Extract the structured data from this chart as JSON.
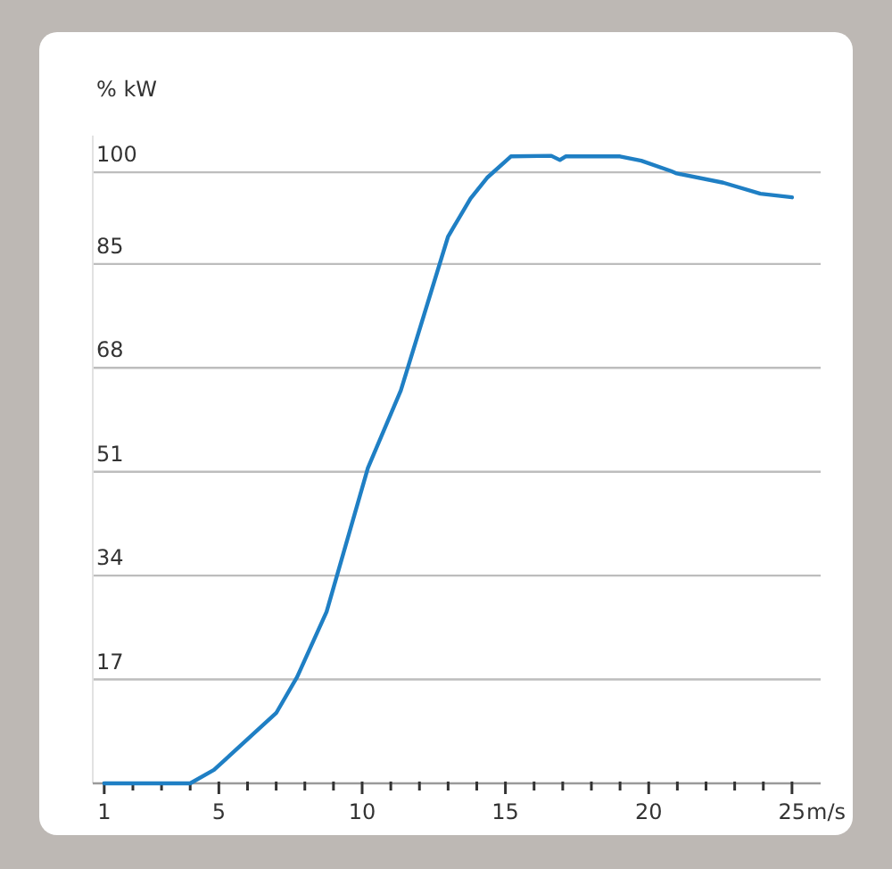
{
  "chart_data": {
    "type": "line",
    "xlabel": "m/s",
    "ylabel": "% kW",
    "x": [
      1,
      4,
      4.83,
      7.0,
      7.73,
      8.76,
      10.2,
      11.35,
      13.0,
      13.78,
      14.36,
      15.19,
      16.6,
      16.9,
      17.1,
      19.0,
      19.74,
      20.78,
      20.98,
      22.6,
      23.9,
      25
    ],
    "series": [
      {
        "color": "#1f7fc4",
        "values": [
          0,
          0,
          2.2,
          11.5,
          17.4,
          28.1,
          51.6,
          64.3,
          89.5,
          95.7,
          99.1,
          102.6,
          102.7,
          102.0,
          102.6,
          102.6,
          101.9,
          100.2,
          99.8,
          98.3,
          96.5,
          95.9
        ]
      }
    ],
    "xlim": [
      0.6,
      26
    ],
    "xticks": [
      1,
      {
        "value": 2,
        "label": null
      },
      {
        "value": 3,
        "label": null
      },
      {
        "value": 4,
        "label": null
      },
      5,
      {
        "value": 6,
        "label": null
      },
      {
        "value": 7,
        "label": null
      },
      {
        "value": 8,
        "label": null
      },
      {
        "value": 9,
        "label": null
      },
      10,
      {
        "value": 11,
        "label": null
      },
      {
        "value": 12,
        "label": null
      },
      {
        "value": 13,
        "label": null
      },
      {
        "value": 14,
        "label": null
      },
      15,
      {
        "value": 16,
        "label": null
      },
      {
        "value": 17,
        "label": null
      },
      {
        "value": 18,
        "label": null
      },
      {
        "value": 19,
        "label": null
      },
      20,
      {
        "value": 21,
        "label": null
      },
      {
        "value": 22,
        "label": null
      },
      {
        "value": 23,
        "label": null
      },
      {
        "value": 24,
        "label": null
      },
      25
    ],
    "ylim": [
      0,
      106
    ],
    "yticks": [
      17,
      34,
      51,
      68,
      85,
      100
    ],
    "grid": "y"
  }
}
